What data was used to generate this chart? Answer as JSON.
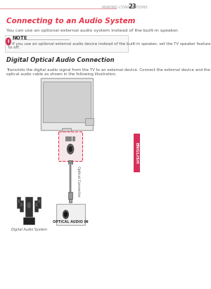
{
  "bg_color": "#ffffff",
  "page_header_text": "MAKING CONNECTIONS",
  "page_number": "23",
  "header_line_color": "#e8a0a8",
  "section_title": "Connecting to an Audio System",
  "section_title_color": "#e8354a",
  "intro_text": "You can use an optional external audio system instead of the built-in speaker.",
  "note_text": "If you use an optional external audio device instead of the built-in speaker, set the TV speaker feature to off.",
  "note_bg": "#f5f5f5",
  "note_border": "#cccccc",
  "subsection_title": "Digital Optical Audio Connection",
  "body_text": "Transmits the digital audio signal from the TV to an external device. Connect the external device and the TV with the\noptical audio cable as shown in the following illustration.",
  "label_digital_audio": "Digital Audio System",
  "label_optical": "OPTICAL AUDIO IN",
  "label_optical_connector": "Optical Connector",
  "english_tab_color": "#d63058",
  "english_tab_text": "ENGLISH",
  "text_color": "#555555",
  "dark_color": "#333333"
}
